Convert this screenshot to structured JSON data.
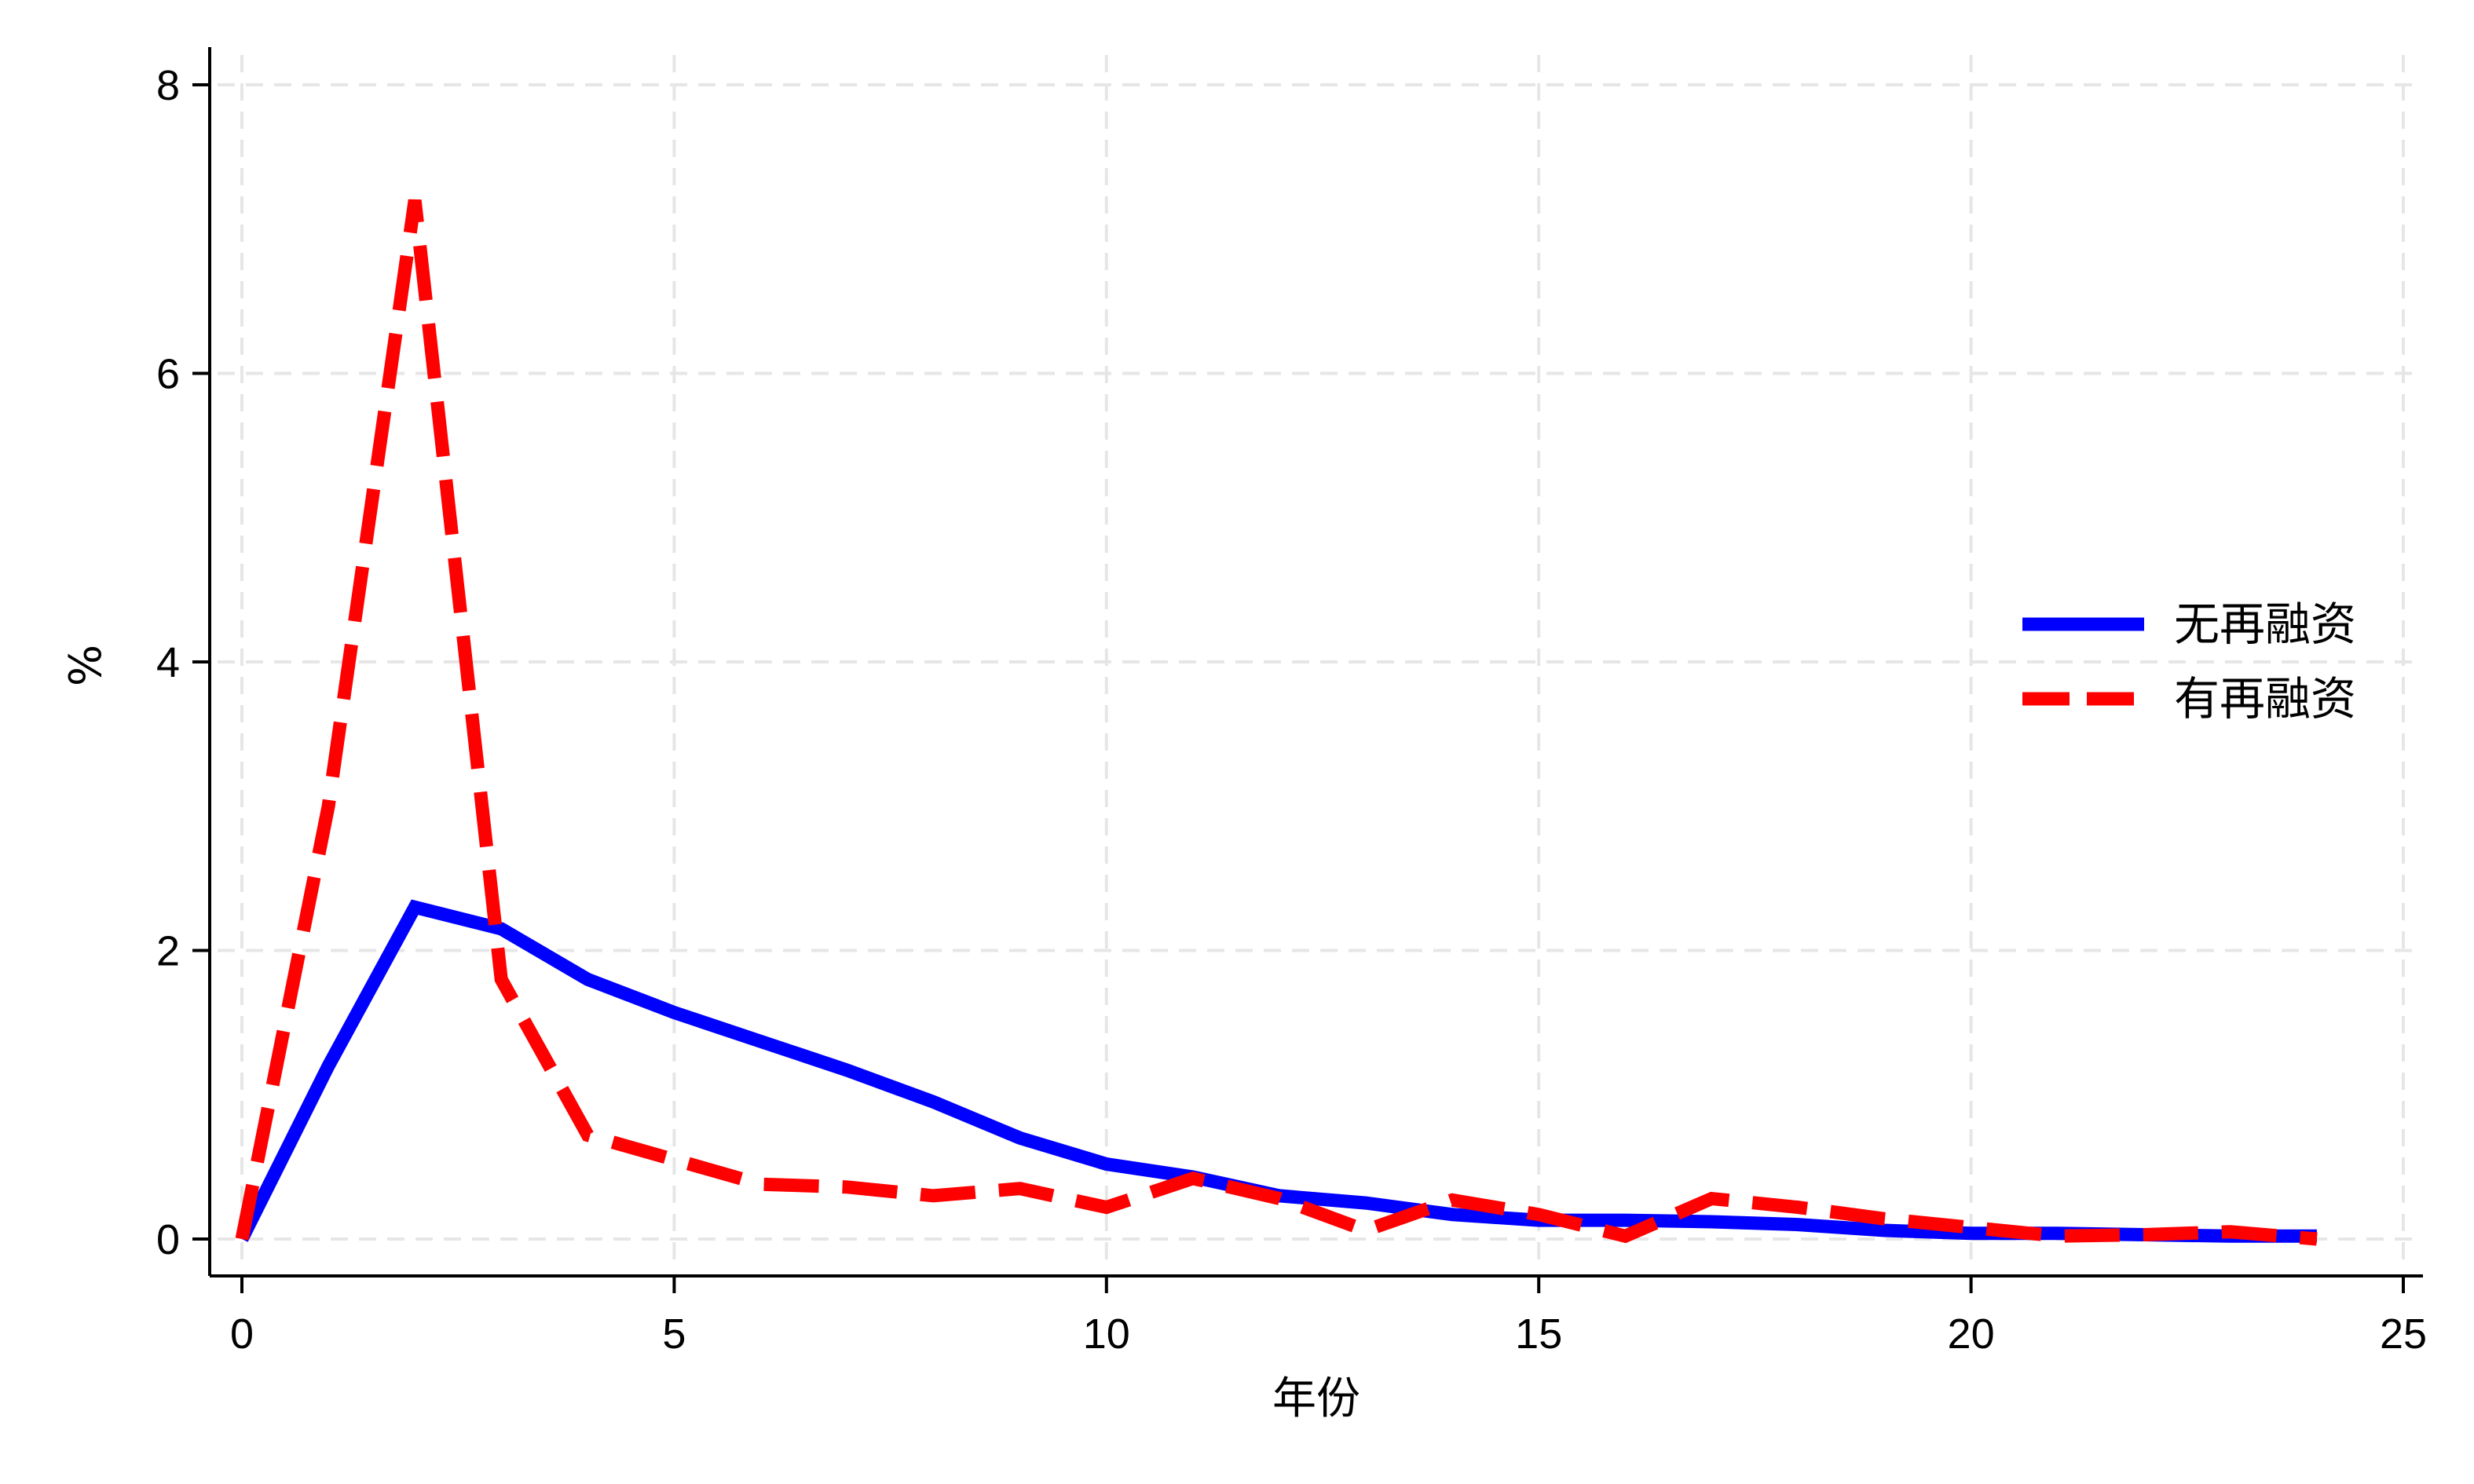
{
  "chart_data": {
    "type": "line",
    "title": "",
    "xlabel": "年份",
    "ylabel": "%",
    "xlim": [
      0,
      25
    ],
    "ylim": [
      0,
      8
    ],
    "xticks": [
      0,
      5,
      10,
      15,
      20,
      25
    ],
    "yticks": [
      0,
      2,
      4,
      6,
      8
    ],
    "grid": "dashed",
    "legend_position": "right",
    "x": [
      0,
      1,
      2,
      3,
      4,
      5,
      6,
      7,
      8,
      9,
      10,
      11,
      12,
      13,
      14,
      15,
      16,
      17,
      18,
      19,
      20,
      21,
      22,
      23,
      24
    ],
    "series": [
      {
        "name": "无再融资",
        "color": "#0000ff",
        "style": "solid",
        "values": [
          0.0,
          1.2,
          2.3,
          2.15,
          1.8,
          1.57,
          1.37,
          1.17,
          0.95,
          0.7,
          0.52,
          0.43,
          0.3,
          0.25,
          0.17,
          0.13,
          0.13,
          0.12,
          0.1,
          0.06,
          0.04,
          0.04,
          0.03,
          0.02,
          0.02
        ]
      },
      {
        "name": "有再融资",
        "color": "#ff0000",
        "style": "dashed",
        "values": [
          0.0,
          3.0,
          7.2,
          1.8,
          0.72,
          0.55,
          0.38,
          0.36,
          0.3,
          0.35,
          0.22,
          0.42,
          0.28,
          0.06,
          0.27,
          0.17,
          0.02,
          0.28,
          0.22,
          0.14,
          0.08,
          0.02,
          0.03,
          0.05,
          0.0
        ]
      }
    ]
  }
}
